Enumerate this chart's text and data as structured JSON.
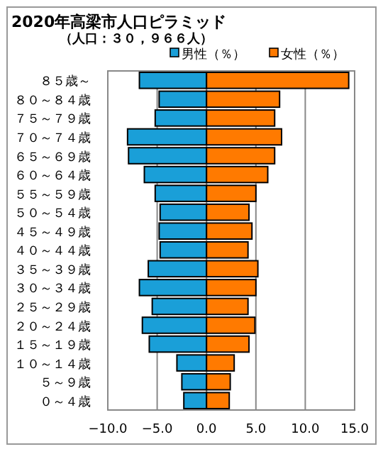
{
  "chart_data": {
    "type": "bar",
    "orientation": "horizontal",
    "title": "2020年高梁市人口ピラミッド",
    "subtitle": "（人口：３０，９６６人）",
    "categories": [
      "８５歳～",
      "８０～８４歳",
      "７５～７９歳",
      "７０～７４歳",
      "６５～６９歳",
      "６０～６４歳",
      "５５～５９歳",
      "５０～５４歳",
      "４５～４９歳",
      "４０～４４歳",
      "３５～３９歳",
      "３０～３４歳",
      "２５～２９歳",
      "２０～２４歳",
      "１５～１９歳",
      "１０～１４歳",
      "５～９歳",
      "０～４歳"
    ],
    "series": [
      {
        "name": "男性（％）",
        "color": "#1a9fd8",
        "values": [
          -6.8,
          -4.8,
          -5.2,
          -8.0,
          -7.9,
          -6.3,
          -5.2,
          -4.7,
          -4.8,
          -4.7,
          -5.9,
          -6.8,
          -5.5,
          -6.5,
          -5.8,
          -3.0,
          -2.5,
          -2.3
        ]
      },
      {
        "name": "女性（％）",
        "color": "#ff7a00",
        "values": [
          14.4,
          7.4,
          6.9,
          7.6,
          6.9,
          6.2,
          5.0,
          4.3,
          4.6,
          4.2,
          5.2,
          5.0,
          4.2,
          4.9,
          4.3,
          2.8,
          2.4,
          2.3
        ]
      }
    ],
    "stacked": true,
    "xlim": [
      -10,
      15
    ],
    "xticks": [
      {
        "value": -10,
        "label": "−10.0"
      },
      {
        "value": -5,
        "label": "−5.0"
      },
      {
        "value": 0,
        "label": "0.0"
      },
      {
        "value": 5,
        "label": "5.0"
      },
      {
        "value": 10,
        "label": "10.0"
      },
      {
        "value": 15,
        "label": "15.0"
      }
    ],
    "grid": "x",
    "legend": "top right"
  }
}
